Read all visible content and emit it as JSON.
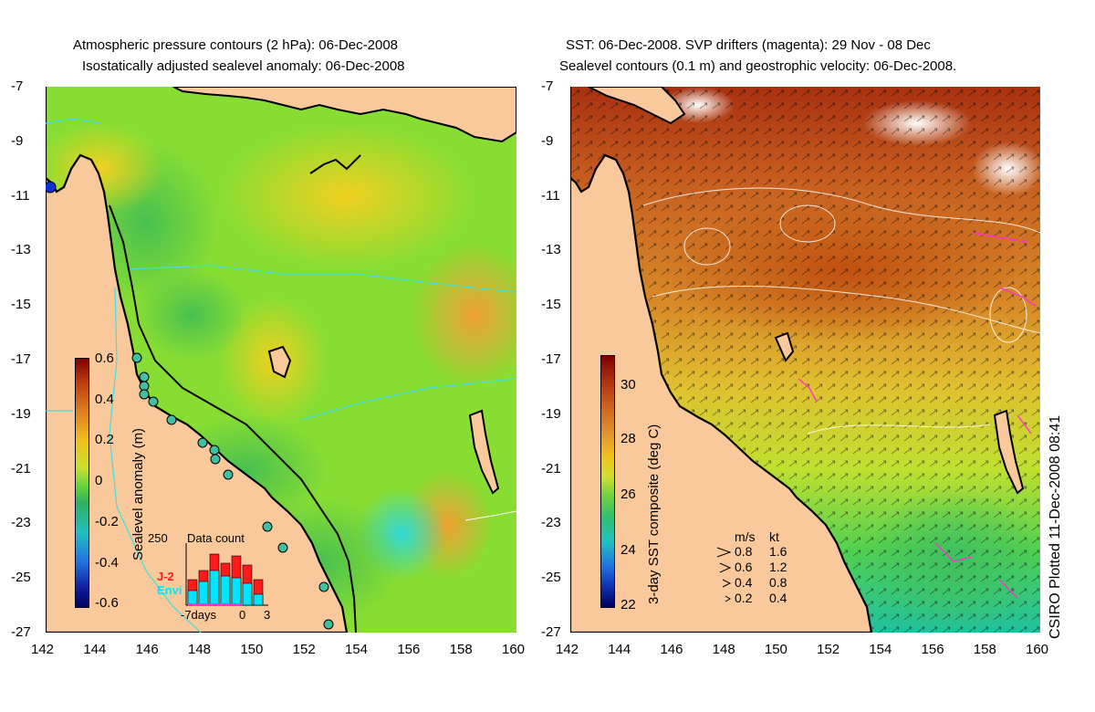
{
  "left_panel": {
    "title_line1": "Atmospheric pressure contours (2 hPa): 06-Dec-2008",
    "title_line2": "Isostatically adjusted sealevel anomaly: 06-Dec-2008",
    "y_ticks": [
      "-7",
      "-9",
      "-11",
      "-13",
      "-15",
      "-17",
      "-19",
      "-21",
      "-23",
      "-25",
      "-27"
    ],
    "x_ticks": [
      "142",
      "144",
      "146",
      "148",
      "150",
      "152",
      "154",
      "156",
      "158",
      "160"
    ],
    "colorbar": {
      "label": "Sealevel anomaly (m)",
      "ticks": [
        "0.6",
        "0.4",
        "0.2",
        "0",
        "-0.2",
        "-0.4",
        "-0.6"
      ],
      "range": [
        -0.6,
        0.6
      ]
    },
    "inset": {
      "title": "Data count",
      "y_max_label": "250",
      "legend_j2": "J-2",
      "legend_envi": "Envi",
      "x_labels": [
        "-7days",
        "0",
        "3"
      ],
      "j2_color": "#ff1a1a",
      "envi_color": "#00e5ff"
    }
  },
  "right_panel": {
    "title_line1": "SST: 06-Dec-2008. SVP drifters (magenta): 29 Nov - 08 Dec",
    "title_line2": "Sealevel contours (0.1 m) and geostrophic velocity: 06-Dec-2008.",
    "y_ticks": [
      "-7",
      "-9",
      "-11",
      "-13",
      "-15",
      "-17",
      "-19",
      "-21",
      "-23",
      "-25",
      "-27"
    ],
    "x_ticks": [
      "142",
      "144",
      "146",
      "148",
      "150",
      "152",
      "154",
      "156",
      "158",
      "160"
    ],
    "colorbar": {
      "label": "3-day SST composite (deg C)",
      "ticks": [
        "30",
        "28",
        "26",
        "24",
        "22"
      ],
      "range": [
        22,
        31
      ]
    },
    "velocity_legend": {
      "header_ms": "m/s",
      "header_kt": "kt",
      "rows": [
        {
          "ms": "0.8",
          "kt": "1.6"
        },
        {
          "ms": "0.6",
          "kt": "1.2"
        },
        {
          "ms": "0.4",
          "kt": "0.8"
        },
        {
          "ms": "0.2",
          "kt": "0.4"
        }
      ]
    }
  },
  "credit": "CSIRO Plotted 11-Dec-2008 08:41",
  "colors": {
    "land": "#f9c99c",
    "coast": "#000000",
    "isobath": "#40e0e0",
    "drifter": "#ff33cc"
  }
}
